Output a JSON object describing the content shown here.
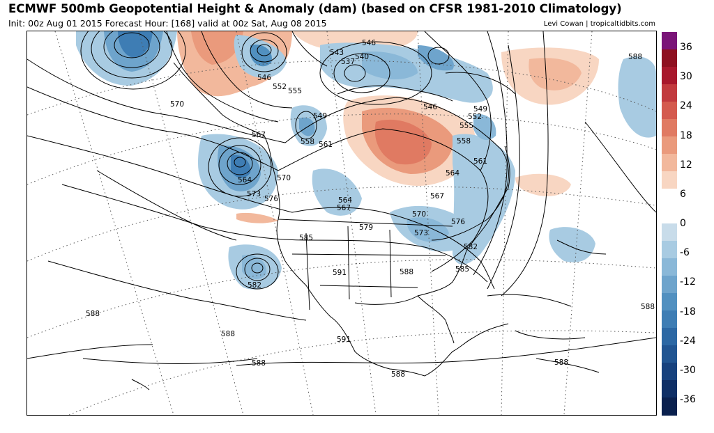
{
  "title": "ECMWF 500mb Geopotential Height & Anomaly (dam) (based on CFSR 1981-2010 Climatology)",
  "subtitle": "Init: 00z Aug 01 2015   Forecast Hour: [168]   valid at 00z Sat, Aug 08 2015",
  "credit": "Levi Cowan | tropicaltidbits.com",
  "colorbar": {
    "labels": [
      "36",
      "30",
      "24",
      "18",
      "12",
      "6",
      "0",
      "-6",
      "-12",
      "-18",
      "-24",
      "-30",
      "-36"
    ],
    "colors": [
      "#7a1478",
      "#8e1020",
      "#a8182c",
      "#c23a3e",
      "#d45a4e",
      "#e07a62",
      "#ea9a7c",
      "#f2b89c",
      "#f8d6c2",
      "#ffffff",
      "#ffffff",
      "#c8dcea",
      "#a8cbe2",
      "#8ab8d8",
      "#6ea4cc",
      "#5190c0",
      "#3e7db4",
      "#2c68a4",
      "#215592",
      "#17427e",
      "#0f2f66",
      "#0a204e"
    ]
  },
  "contour_labels": [
    {
      "text": "546",
      "name": "label-546-nw"
    },
    {
      "text": "543",
      "name": "label-543"
    },
    {
      "text": "540",
      "name": "label-540"
    },
    {
      "text": "537",
      "name": "label-537"
    },
    {
      "text": "546",
      "name": "label-546-top"
    },
    {
      "text": "552",
      "name": "label-552-w"
    },
    {
      "text": "555",
      "name": "label-555-w"
    },
    {
      "text": "570",
      "name": "label-570-w"
    },
    {
      "text": "549",
      "name": "label-549-c"
    },
    {
      "text": "558",
      "name": "label-558-c"
    },
    {
      "text": "561",
      "name": "label-561-c"
    },
    {
      "text": "546",
      "name": "label-546-e"
    },
    {
      "text": "549",
      "name": "label-549-e"
    },
    {
      "text": "552",
      "name": "label-552-e"
    },
    {
      "text": "555",
      "name": "label-555-e"
    },
    {
      "text": "558",
      "name": "label-558-e"
    },
    {
      "text": "561",
      "name": "label-561-e"
    },
    {
      "text": "564",
      "name": "label-564-e"
    },
    {
      "text": "567",
      "name": "label-567-e"
    },
    {
      "text": "567",
      "name": "label-567-w"
    },
    {
      "text": "564",
      "name": "label-564-w"
    },
    {
      "text": "570",
      "name": "label-570-bc"
    },
    {
      "text": "573",
      "name": "label-573-w"
    },
    {
      "text": "576",
      "name": "label-576-w"
    },
    {
      "text": "564",
      "name": "label-564-c"
    },
    {
      "text": "567",
      "name": "label-567-c"
    },
    {
      "text": "570",
      "name": "label-570-ne"
    },
    {
      "text": "579",
      "name": "label-579"
    },
    {
      "text": "573",
      "name": "label-573-ne"
    },
    {
      "text": "576",
      "name": "label-576-ne"
    },
    {
      "text": "585",
      "name": "label-585-w"
    },
    {
      "text": "582",
      "name": "label-582-e"
    },
    {
      "text": "588",
      "name": "label-588-se"
    },
    {
      "text": "585",
      "name": "label-585-e"
    },
    {
      "text": "591",
      "name": "label-591-n"
    },
    {
      "text": "582",
      "name": "label-582-w"
    },
    {
      "text": "588",
      "name": "label-588-pac"
    },
    {
      "text": "588",
      "name": "label-588-pac2"
    },
    {
      "text": "591",
      "name": "label-591-s"
    },
    {
      "text": "588",
      "name": "label-588-mx"
    },
    {
      "text": "588",
      "name": "label-588-ca"
    },
    {
      "text": "588",
      "name": "label-588-gulf"
    },
    {
      "text": "588",
      "name": "label-588-atl"
    },
    {
      "text": "588",
      "name": "label-588-ne"
    }
  ]
}
